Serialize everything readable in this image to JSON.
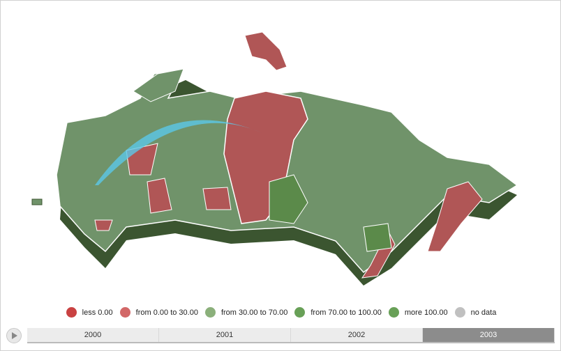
{
  "legend": [
    {
      "label": "less 0.00",
      "color": "#c94242"
    },
    {
      "label": "from 0.00 to 30.00",
      "color": "#d26767"
    },
    {
      "label": "from 30.00 to 70.00",
      "color": "#8bb07b"
    },
    {
      "label": "from 70.00 to 100.00",
      "color": "#68a057"
    },
    {
      "label": "more 100.00",
      "color": "#68a057"
    },
    {
      "label": "no data",
      "color": "#c0c0c0"
    }
  ],
  "timeline": {
    "years": [
      "2000",
      "2001",
      "2002",
      "2003"
    ],
    "selected": "2003"
  },
  "map": {
    "colors": {
      "green": "#70936a",
      "dark_green": "#5b8a4a",
      "red": "#b05656",
      "arc": "#5bc8e8"
    }
  }
}
